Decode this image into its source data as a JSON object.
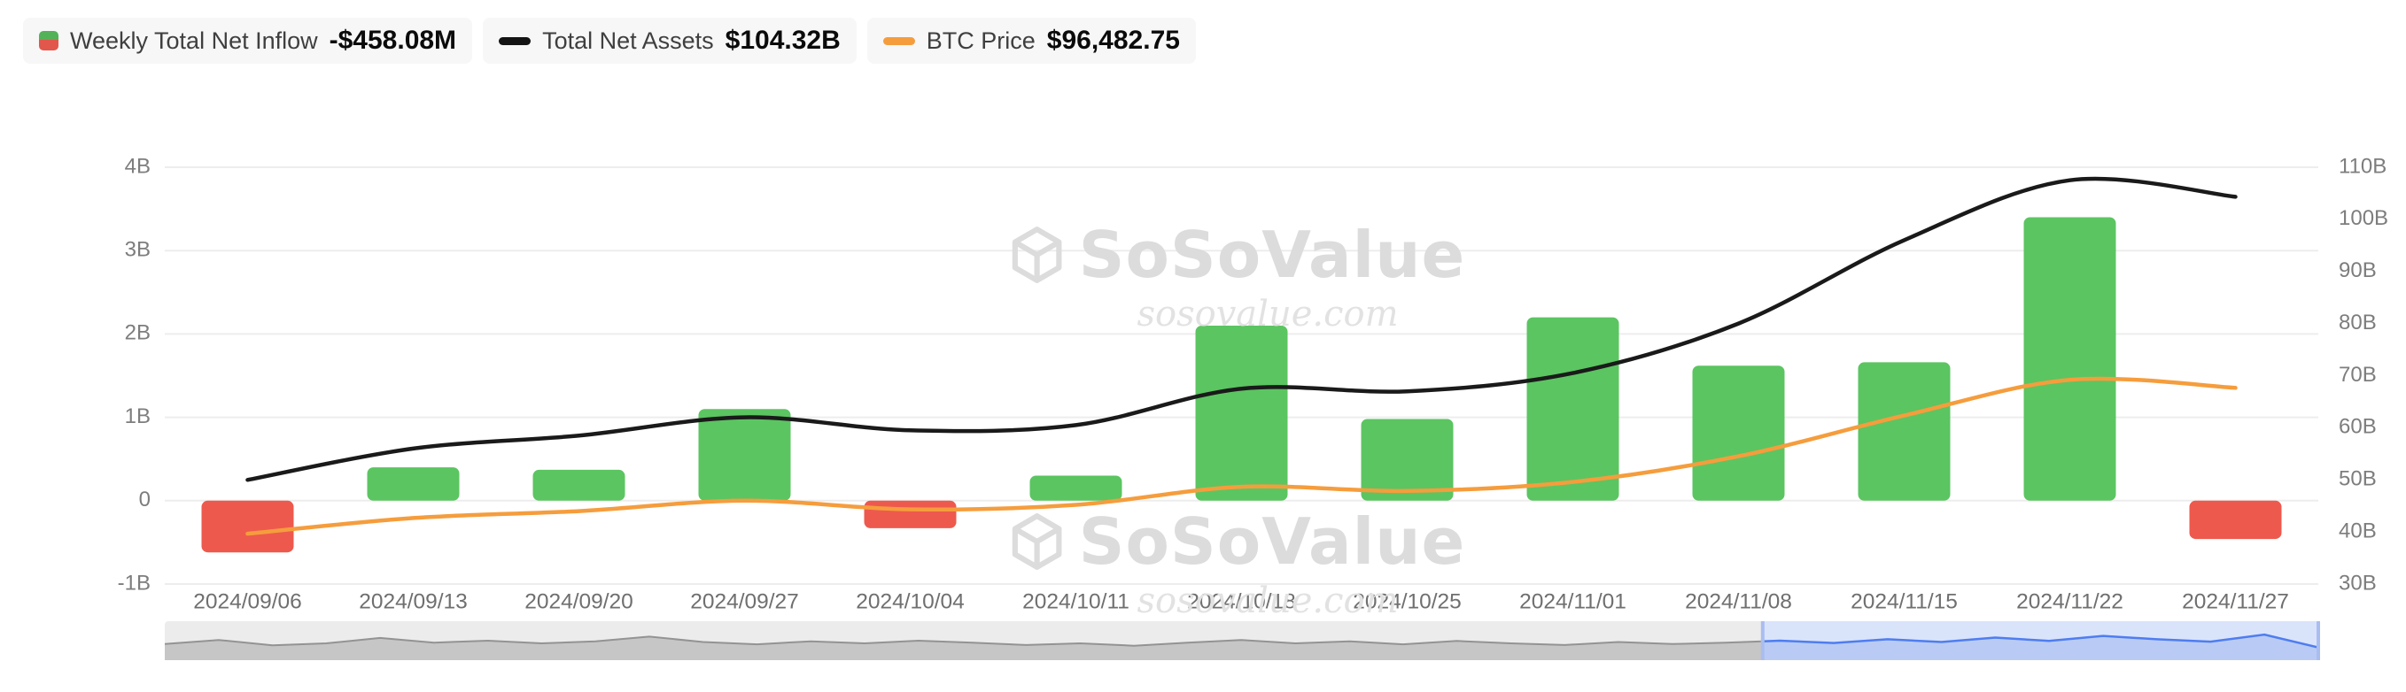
{
  "legend": {
    "inflow": {
      "label": "Weekly Total Net Inflow",
      "value": "-$458.08M"
    },
    "assets": {
      "label": "Total Net Assets",
      "value": "$104.32B"
    },
    "btc": {
      "label": "BTC Price",
      "value": "$96,482.75"
    }
  },
  "watermark": {
    "title": "SoSoValue",
    "domain": "sosovalue.com"
  },
  "colors": {
    "bar_positive": "#5bc561",
    "bar_negative": "#ee594d",
    "assets_line": "#1a1a1a",
    "btc_line": "#f59d3d",
    "grid": "#ededed",
    "axis_text": "#7d7d7d",
    "x_label_text": "#6f6f6f",
    "nav_bg": "#ececec",
    "nav_fill": "#c6c6c6",
    "nav_line": "#939393",
    "nav_sel_bg": "#d9e4fb",
    "nav_sel_fill": "#b9cbf4",
    "nav_sel_line": "#4f7df0",
    "nav_handle": "#a9bdf0",
    "watermark": "#dcdcdc"
  },
  "chart_data": {
    "type": "combo",
    "categories": [
      "2024/09/06",
      "2024/09/13",
      "2024/09/20",
      "2024/09/27",
      "2024/10/04",
      "2024/10/11",
      "2024/10/18",
      "2024/10/25",
      "2024/11/01",
      "2024/11/08",
      "2024/11/15",
      "2024/11/22",
      "2024/11/27"
    ],
    "series": [
      {
        "name": "Weekly Total Net Inflow",
        "type": "bar",
        "axis": "left",
        "unit": "B USD",
        "values": [
          -0.62,
          0.4,
          0.37,
          1.1,
          -0.33,
          0.3,
          2.1,
          0.98,
          2.2,
          1.62,
          1.66,
          3.4,
          -0.46
        ]
      },
      {
        "name": "Total Net Assets",
        "type": "line",
        "axis": "right",
        "unit": "B USD",
        "values": [
          50.0,
          56.0,
          58.5,
          62.0,
          59.5,
          60.5,
          67.5,
          67.0,
          70.5,
          80.0,
          96.0,
          107.5,
          104.32
        ]
      },
      {
        "name": "BTC Price",
        "type": "line",
        "axis": "hidden",
        "unit": "USD",
        "values": [
          54500,
          59000,
          61000,
          64000,
          61500,
          62800,
          68000,
          66800,
          69400,
          76800,
          88500,
          98800,
          96482.75
        ]
      }
    ],
    "left_axis": {
      "range": [
        -1,
        4
      ],
      "ticks": [
        "4B",
        "3B",
        "2B",
        "1B",
        "0",
        "-1B"
      ],
      "tick_values": [
        4,
        3,
        2,
        1,
        0,
        -1
      ]
    },
    "right_axis": {
      "range": [
        30,
        110
      ],
      "ticks": [
        "110B",
        "100B",
        "90B",
        "80B",
        "70B",
        "60B",
        "50B",
        "40B",
        "30B"
      ],
      "tick_values": [
        110,
        100,
        90,
        80,
        70,
        60,
        50,
        40,
        30
      ]
    },
    "btc_plot_range": [
      40000,
      160000
    ],
    "grid": "horizontal",
    "legend_position": "top-left"
  },
  "navigator": {
    "values": [
      0.48,
      0.6,
      0.44,
      0.5,
      0.66,
      0.52,
      0.58,
      0.5,
      0.56,
      0.7,
      0.54,
      0.47,
      0.56,
      0.5,
      0.58,
      0.52,
      0.45,
      0.5,
      0.43,
      0.52,
      0.6,
      0.5,
      0.56,
      0.47,
      0.57,
      0.5,
      0.45,
      0.54,
      0.48,
      0.52,
      0.58,
      0.51,
      0.62,
      0.54,
      0.67,
      0.57,
      0.72,
      0.62,
      0.55,
      0.76,
      0.38
    ],
    "selection": [
      0.742,
      1.0
    ]
  }
}
